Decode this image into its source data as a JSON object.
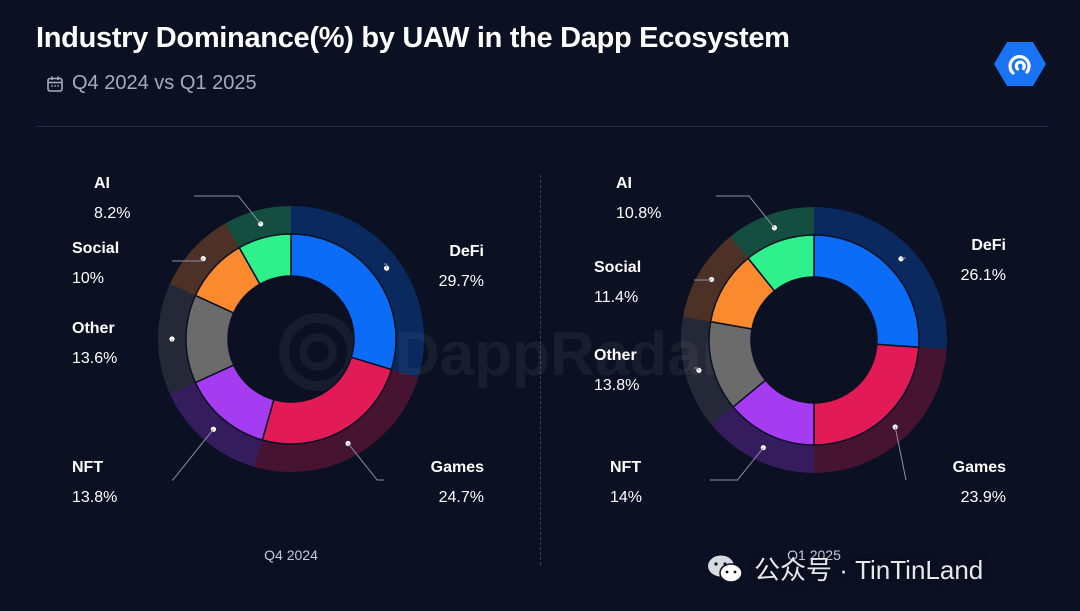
{
  "header": {
    "title": "Industry Dominance(%) by UAW in the Dapp Ecosystem",
    "subtitle": "Q4 2024 vs Q1 2025"
  },
  "watermark": "DappRadar",
  "credit": "公众号 · TinTinLand",
  "colors": {
    "DeFi": "#0b6cf7",
    "Games": "#e21b57",
    "NFT": "#a63cf2",
    "Other": "#6b6b6b",
    "Social": "#fb8a2e",
    "AI": "#2ff18b",
    "background": "#0b1023"
  },
  "chart_data": [
    {
      "type": "donut",
      "caption": "Q4 2024",
      "slices": [
        {
          "label": "DeFi",
          "value": 29.7,
          "display": "29.7%"
        },
        {
          "label": "Games",
          "value": 24.7,
          "display": "24.7%"
        },
        {
          "label": "NFT",
          "value": 13.8,
          "display": "13.8%"
        },
        {
          "label": "Other",
          "value": 13.6,
          "display": "13.6%"
        },
        {
          "label": "Social",
          "value": 10,
          "display": "10%"
        },
        {
          "label": "AI",
          "value": 8.2,
          "display": "8.2%"
        }
      ]
    },
    {
      "type": "donut",
      "caption": "Q1 2025",
      "slices": [
        {
          "label": "DeFi",
          "value": 26.1,
          "display": "26.1%"
        },
        {
          "label": "Games",
          "value": 23.9,
          "display": "23.9%"
        },
        {
          "label": "NFT",
          "value": 14,
          "display": "14%"
        },
        {
          "label": "Other",
          "value": 13.8,
          "display": "13.8%"
        },
        {
          "label": "Social",
          "value": 11.4,
          "display": "11.4%"
        },
        {
          "label": "AI",
          "value": 10.8,
          "display": "10.8%"
        }
      ]
    }
  ]
}
